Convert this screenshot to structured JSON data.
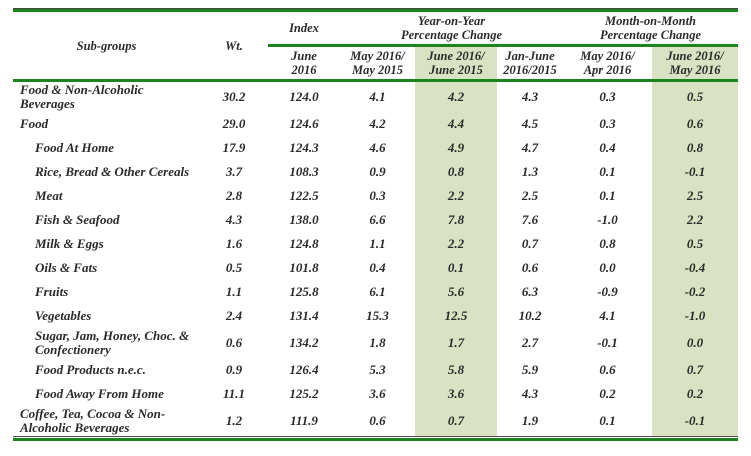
{
  "table": {
    "title_hint": "CPI sub-groups index and percentage change table",
    "headers": {
      "subgroups": "Sub-groups",
      "wt": "Wt.",
      "index_group": "Index",
      "yoy_group_l1": "Year-on-Year",
      "yoy_group_l2": "Percentage Change",
      "mom_group_l1": "Month-on-Month",
      "mom_group_l2": "Percentage Change",
      "cols": [
        {
          "l1": "June",
          "l2": "2016",
          "shaded": false
        },
        {
          "l1": "May 2016/",
          "l2": "May 2015",
          "shaded": false
        },
        {
          "l1": "June 2016/",
          "l2": "June 2015",
          "shaded": true
        },
        {
          "l1": "Jan-June",
          "l2": "2016/2015",
          "shaded": false
        },
        {
          "l1": "May 2016/",
          "l2": "Apr 2016",
          "shaded": false
        },
        {
          "l1": "June 2016/",
          "l2": "May 2016",
          "shaded": true
        }
      ]
    },
    "shaded_value_columns": [
      3,
      6
    ],
    "rows": [
      {
        "name": "Food & Non-Alcoholic Beverages",
        "indent": 0,
        "twoline": true,
        "values": [
          "30.2",
          "124.0",
          "4.1",
          "4.2",
          "4.3",
          "0.3",
          "0.5"
        ]
      },
      {
        "name": "Food",
        "indent": 0,
        "twoline": false,
        "values": [
          "29.0",
          "124.6",
          "4.2",
          "4.4",
          "4.5",
          "0.3",
          "0.6"
        ]
      },
      {
        "name": "Food At Home",
        "indent": 1,
        "twoline": false,
        "values": [
          "17.9",
          "124.3",
          "4.6",
          "4.9",
          "4.7",
          "0.4",
          "0.8"
        ]
      },
      {
        "name": "Rice, Bread & Other Cereals",
        "indent": 1,
        "twoline": false,
        "values": [
          "3.7",
          "108.3",
          "0.9",
          "0.8",
          "1.3",
          "0.1",
          "-0.1"
        ]
      },
      {
        "name": "Meat",
        "indent": 1,
        "twoline": false,
        "values": [
          "2.8",
          "122.5",
          "0.3",
          "2.2",
          "2.5",
          "0.1",
          "2.5"
        ]
      },
      {
        "name": "Fish & Seafood",
        "indent": 1,
        "twoline": false,
        "values": [
          "4.3",
          "138.0",
          "6.6",
          "7.8",
          "7.6",
          "-1.0",
          "2.2"
        ]
      },
      {
        "name": "Milk & Eggs",
        "indent": 1,
        "twoline": false,
        "values": [
          "1.6",
          "124.8",
          "1.1",
          "2.2",
          "0.7",
          "0.8",
          "0.5"
        ]
      },
      {
        "name": "Oils & Fats",
        "indent": 1,
        "twoline": false,
        "values": [
          "0.5",
          "101.8",
          "0.4",
          "0.1",
          "0.6",
          "0.0",
          "-0.4"
        ]
      },
      {
        "name": "Fruits",
        "indent": 1,
        "twoline": false,
        "values": [
          "1.1",
          "125.8",
          "6.1",
          "5.6",
          "6.3",
          "-0.9",
          "-0.2"
        ]
      },
      {
        "name": "Vegetables",
        "indent": 1,
        "twoline": false,
        "values": [
          "2.4",
          "131.4",
          "15.3",
          "12.5",
          "10.2",
          "4.1",
          "-1.0"
        ]
      },
      {
        "name": "Sugar, Jam, Honey, Choc. & Confectionery",
        "indent": 1,
        "twoline": true,
        "values": [
          "0.6",
          "134.2",
          "1.8",
          "1.7",
          "2.7",
          "-0.1",
          "0.0"
        ]
      },
      {
        "name": "Food Products n.e.c.",
        "indent": 1,
        "twoline": false,
        "values": [
          "0.9",
          "126.4",
          "5.3",
          "5.8",
          "5.9",
          "0.6",
          "0.7"
        ]
      },
      {
        "name": "Food Away From Home",
        "indent": 1,
        "twoline": false,
        "values": [
          "11.1",
          "125.2",
          "3.6",
          "3.6",
          "4.3",
          "0.2",
          "0.2"
        ]
      },
      {
        "name": "Coffee, Tea, Cocoa & Non-Alcoholic Beverages",
        "indent": 0,
        "twoline": true,
        "values": [
          "1.2",
          "111.9",
          "0.6",
          "0.7",
          "1.9",
          "0.1",
          "-0.1"
        ]
      }
    ]
  },
  "colors": {
    "rule_green": "#1d841d",
    "column_shade": "#d9e3c4",
    "text": "#2a2a2a"
  }
}
